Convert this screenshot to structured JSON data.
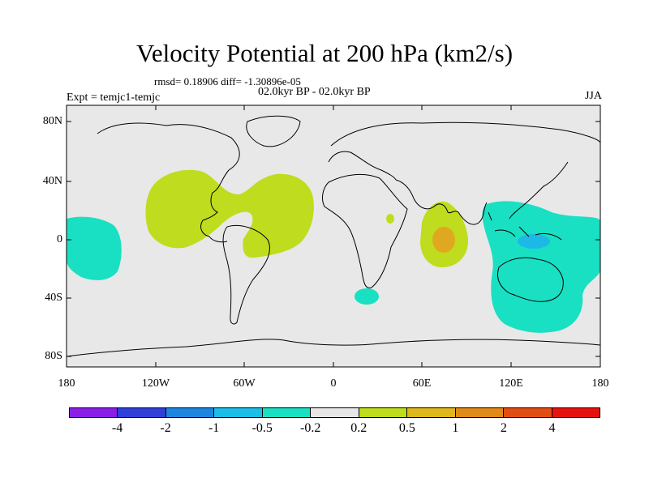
{
  "title": "Velocity Potential at 200 hPa (km2/s)",
  "stats_line": "rmsd= 0.18906 diff= -1.30896e-05",
  "period_line": "02.0kyr BP - 02.0kyr BP",
  "expt_line": "Expt = temjc1-temjc",
  "season": "JJA",
  "lat_ticks": [
    "80N",
    "40N",
    "0",
    "40S",
    "80S"
  ],
  "lon_ticks": [
    "180",
    "120W",
    "60W",
    "0",
    "60E",
    "120E",
    "180"
  ],
  "colorbar": {
    "colors": [
      "#8a1ee6",
      "#2f3fd8",
      "#1f86e0",
      "#1cbde6",
      "#19e0c2",
      "#e6e6e6",
      "#bfdc1c",
      "#dfb81d",
      "#e08a1a",
      "#e24d14",
      "#e6120e"
    ],
    "labels": [
      "-4",
      "-2",
      "-1",
      "-0.5",
      "-0.2",
      "0.2",
      "0.5",
      "1",
      "2",
      "4"
    ]
  },
  "colors": {
    "background": "#e8e8e8",
    "positive_weak": "#c0dc1e",
    "positive_mid": "#e0a820",
    "negative_weak": "#19e0c2",
    "negative_mid": "#1cb8e6"
  }
}
